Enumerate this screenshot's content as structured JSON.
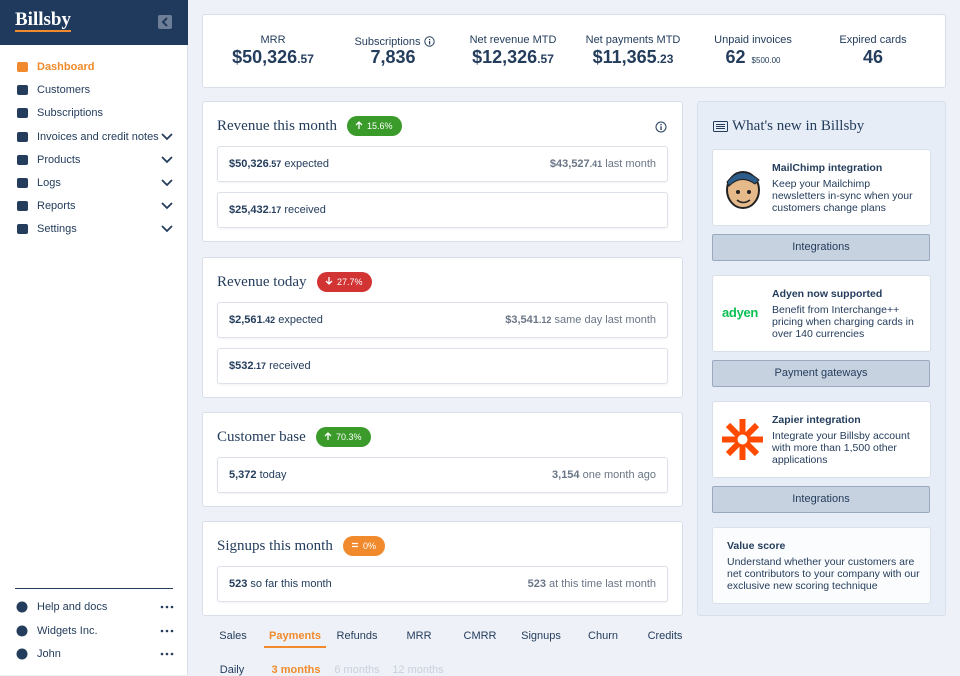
{
  "brand": "Billsby",
  "nav": [
    {
      "label": "Dashboard",
      "active": true
    },
    {
      "label": "Customers"
    },
    {
      "label": "Subscriptions"
    },
    {
      "label": "Invoices and credit notes",
      "chevron": true
    },
    {
      "label": "Products",
      "chevron": true
    },
    {
      "label": "Logs",
      "chevron": true
    },
    {
      "label": "Reports",
      "chevron": true
    },
    {
      "label": "Settings",
      "chevron": true
    }
  ],
  "nav_footer": [
    {
      "label": "Help and docs"
    },
    {
      "label": "Widgets Inc."
    },
    {
      "label": "John"
    }
  ],
  "kpis": [
    {
      "label": "MRR",
      "value": "$50,326",
      "cents": ".57"
    },
    {
      "label": "Subscriptions",
      "value": "7,836",
      "info": true
    },
    {
      "label": "Net revenue MTD",
      "value": "$12,326",
      "cents": ".57"
    },
    {
      "label": "Net payments MTD",
      "value": "$11,365",
      "cents": ".23"
    },
    {
      "label": "Unpaid invoices",
      "value": "62",
      "note": "$500.00"
    },
    {
      "label": "Expired cards",
      "value": "46"
    }
  ],
  "cards": [
    {
      "title": "Revenue this month",
      "badge": "15.6%",
      "trend": "up",
      "info": true,
      "rows": [
        {
          "value": "$50,326",
          "cents": ".57",
          "text": "expected",
          "right_value": "$43,527",
          "right_cents": ".41",
          "right_text": "last month"
        },
        {
          "value": "$25,432",
          "cents": ".17",
          "text": "received"
        }
      ]
    },
    {
      "title": "Revenue today",
      "badge": "27.7%",
      "trend": "down",
      "rows": [
        {
          "value": "$2,561",
          "cents": ".42",
          "text": "expected",
          "right_value": "$3,541",
          "right_cents": ".12",
          "right_text": "same day last month"
        },
        {
          "value": "$532",
          "cents": ".17",
          "text": "received"
        }
      ]
    },
    {
      "title": "Customer base",
      "badge": "70.3%",
      "trend": "up",
      "rows": [
        {
          "value": "5,372",
          "text": "today",
          "right_value": "3,154",
          "right_text": "one month ago"
        }
      ]
    },
    {
      "title": "Signups this month",
      "badge": "0%",
      "trend": "flat",
      "rows": [
        {
          "value": "523",
          "text": "so far this month",
          "right_value": "523",
          "right_text": "at this time last month"
        }
      ]
    }
  ],
  "whats_new": {
    "title": "What's new in Billsby",
    "items": [
      {
        "title": "MailChimp integration",
        "text": "Keep your Mailchimp newsletters in-sync when your customers change plans",
        "button": "Integrations",
        "logo": "mailchimp"
      },
      {
        "title": "Adyen now supported",
        "text": "Benefit from Interchange++ pricing when charging cards in over 140 currencies",
        "button": "Payment gateways",
        "logo": "adyen",
        "logo_text": "adyen"
      },
      {
        "title": "Zapier integration",
        "text": "Integrate your Billsby account with more than 1,500 other applications",
        "button": "Integrations",
        "logo": "zapier"
      },
      {
        "title": "Value score",
        "text": "Understand whether your customers are net contributors to your company with our exclusive new scoring technique"
      }
    ]
  },
  "tabs": [
    {
      "label": "Sales"
    },
    {
      "label": "Payments",
      "active": true
    },
    {
      "label": "Refunds"
    },
    {
      "label": "MRR"
    },
    {
      "label": "CMRR"
    },
    {
      "label": "Signups"
    },
    {
      "label": "Churn"
    },
    {
      "label": "Credits"
    }
  ],
  "subtabs": [
    {
      "label": "Daily"
    },
    {
      "label": "3 months",
      "active": true
    },
    {
      "label": "6 months",
      "muted": true
    },
    {
      "label": "12 months",
      "muted": true
    }
  ]
}
